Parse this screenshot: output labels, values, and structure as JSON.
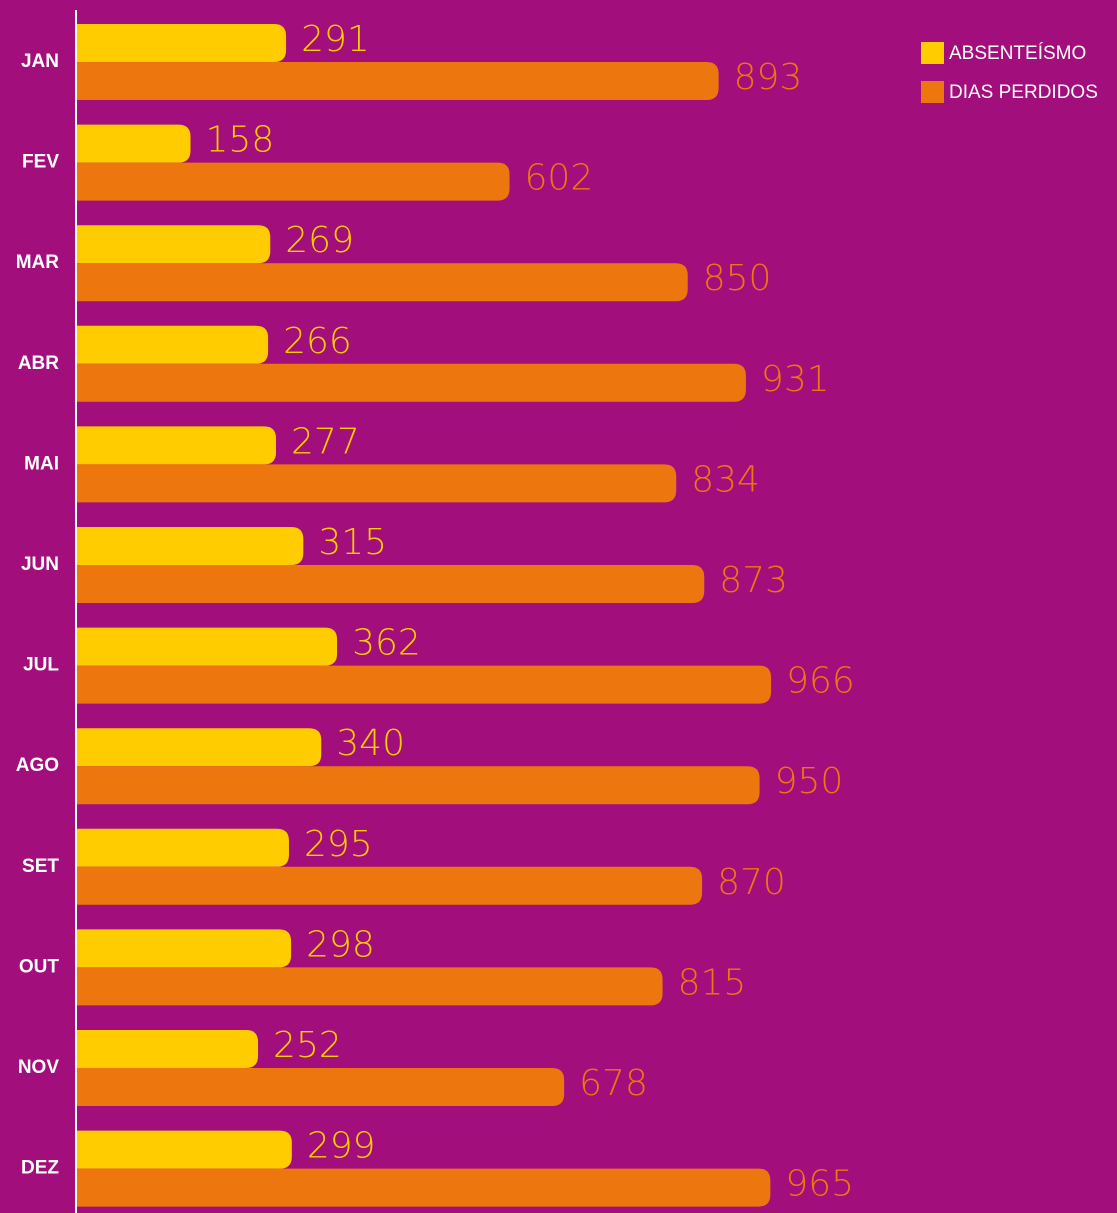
{
  "chart_data": {
    "type": "bar",
    "orientation": "horizontal",
    "categories": [
      "JAN",
      "FEV",
      "MAR",
      "ABR",
      "MAI",
      "JUN",
      "JUL",
      "AGO",
      "SET",
      "OUT",
      "NOV",
      "DEZ"
    ],
    "series": [
      {
        "name": "ABSENTEÍSMO",
        "color": "#ffcc00",
        "values": [
          291,
          158,
          269,
          266,
          277,
          315,
          362,
          340,
          295,
          298,
          252,
          299
        ]
      },
      {
        "name": "DIAS PERDIDOS",
        "color": "#ee760f",
        "values": [
          893,
          602,
          850,
          931,
          834,
          873,
          966,
          950,
          870,
          815,
          678,
          965
        ]
      }
    ],
    "legend": "top-right"
  }
}
